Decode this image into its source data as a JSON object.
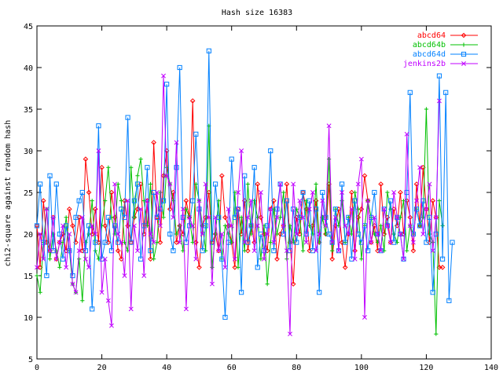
{
  "chart_data": {
    "type": "line",
    "title": "Hash size 16383",
    "ylabel": "chi2-square against random hash",
    "xlabel": "",
    "xlim": [
      0,
      140
    ],
    "ylim": [
      5,
      45
    ],
    "x_ticks": [
      0,
      20,
      40,
      60,
      80,
      100,
      120,
      140
    ],
    "y_ticks": [
      5,
      10,
      15,
      20,
      25,
      30,
      35,
      40,
      45
    ],
    "grid": false,
    "legend_position": "top-right",
    "series": [
      {
        "name": "abcd64",
        "color": "#ff0000",
        "marker": "diamond",
        "x_start": 0,
        "values": [
          21,
          16,
          24,
          19,
          18,
          22,
          17,
          19,
          20,
          18,
          23,
          21,
          19,
          22,
          18,
          29,
          25,
          20,
          23,
          19,
          28,
          21,
          19,
          25,
          22,
          18,
          17,
          24,
          21,
          19,
          22,
          23,
          26,
          20,
          24,
          17,
          31,
          22,
          19,
          27,
          30,
          23,
          25,
          19,
          21,
          20,
          24,
          22,
          36,
          19,
          16,
          21,
          22,
          25,
          19,
          20,
          18,
          27,
          22,
          21,
          19,
          16,
          23,
          20,
          24,
          18,
          21,
          19,
          26,
          22,
          20,
          18,
          23,
          24,
          17,
          20,
          21,
          26,
          19,
          14,
          22,
          20,
          25,
          23,
          18,
          21,
          24,
          19,
          22,
          20,
          26,
          17,
          21,
          23,
          19,
          16,
          20,
          25,
          18,
          22,
          23,
          27,
          24,
          19,
          21,
          18,
          26,
          20,
          22,
          19,
          23,
          21,
          25,
          20,
          24,
          22,
          18,
          26,
          21,
          28,
          23,
          19,
          24,
          22,
          16,
          16
        ]
      },
      {
        "name": "abcd64b",
        "color": "#00c000",
        "marker": "plus",
        "x_start": 0,
        "values": [
          15,
          13,
          19,
          23,
          17,
          20,
          18,
          16,
          19,
          22,
          18,
          14,
          13,
          17,
          12,
          19,
          20,
          24,
          18,
          17,
          21,
          24,
          28,
          22,
          20,
          26,
          24,
          19,
          18,
          28,
          22,
          27,
          29,
          24,
          21,
          26,
          17,
          19,
          25,
          22,
          28,
          26,
          24,
          20,
          21,
          18,
          23,
          22,
          19,
          26,
          24,
          21,
          18,
          33,
          16,
          20,
          24,
          17,
          21,
          20,
          19,
          25,
          16,
          22,
          18,
          26,
          20,
          24,
          22,
          17,
          21,
          14,
          19,
          23,
          20,
          22,
          25,
          17,
          21,
          19,
          23,
          22,
          18,
          24,
          21,
          20,
          26,
          19,
          22,
          20,
          29,
          18,
          23,
          21,
          24,
          19,
          22,
          20,
          25,
          23,
          17,
          21,
          24,
          22,
          20,
          19,
          21,
          18,
          25,
          23,
          20,
          19,
          22,
          24,
          18,
          21,
          20,
          23,
          21,
          22,
          35,
          20,
          19,
          8,
          24,
          21
        ]
      },
      {
        "name": "abcd64d",
        "color": "#0080ff",
        "marker": "square",
        "x_start": 0,
        "values": [
          21,
          26,
          19,
          15,
          27,
          18,
          26,
          20,
          17,
          21,
          18,
          15,
          22,
          24,
          25,
          18,
          21,
          11,
          19,
          33,
          17,
          19,
          22,
          18,
          21,
          19,
          23,
          22,
          34,
          19,
          24,
          26,
          17,
          21,
          28,
          18,
          25,
          22,
          23,
          24,
          38,
          20,
          18,
          28,
          40,
          22,
          19,
          21,
          24,
          32,
          23,
          18,
          21,
          42,
          19,
          26,
          22,
          17,
          10,
          19,
          29,
          22,
          23,
          13,
          27,
          19,
          21,
          28,
          16,
          20,
          18,
          21,
          30,
          18,
          23,
          26,
          20,
          24,
          18,
          23,
          19,
          22,
          25,
          20,
          24,
          18,
          23,
          13,
          25,
          22,
          20,
          19,
          23,
          18,
          26,
          19,
          22,
          17,
          24,
          20,
          19,
          21,
          18,
          22,
          25,
          20,
          18,
          23,
          21,
          24,
          19,
          22,
          20,
          17,
          25,
          37,
          20,
          23,
          21,
          24,
          19,
          22,
          13,
          20,
          39,
          17,
          37,
          12,
          19
        ]
      },
      {
        "name": "jenkins2b",
        "color": "#c000ff",
        "marker": "x",
        "x_start": 0,
        "values": [
          16,
          20,
          17,
          23,
          18,
          22,
          17,
          19,
          21,
          16,
          20,
          14,
          13,
          18,
          22,
          17,
          16,
          21,
          20,
          30,
          13,
          17,
          12,
          9,
          26,
          20,
          19,
          15,
          24,
          11,
          21,
          18,
          23,
          15,
          24,
          20,
          19,
          25,
          21,
          39,
          27,
          26,
          22,
          31,
          19,
          23,
          11,
          22,
          21,
          17,
          24,
          20,
          26,
          22,
          14,
          22,
          18,
          20,
          16,
          23,
          21,
          17,
          25,
          30,
          19,
          22,
          24,
          18,
          21,
          25,
          17,
          20,
          23,
          19,
          22,
          26,
          21,
          18,
          8,
          26,
          20,
          24,
          22,
          19,
          23,
          25,
          18,
          20,
          24,
          21,
          33,
          19,
          22,
          18,
          25,
          21,
          20,
          23,
          17,
          26,
          29,
          10,
          24,
          19,
          22,
          20,
          18,
          23,
          21,
          19,
          25,
          22,
          20,
          17,
          32,
          21,
          19,
          24,
          28,
          20,
          23,
          26,
          18,
          22,
          36
        ]
      }
    ]
  }
}
